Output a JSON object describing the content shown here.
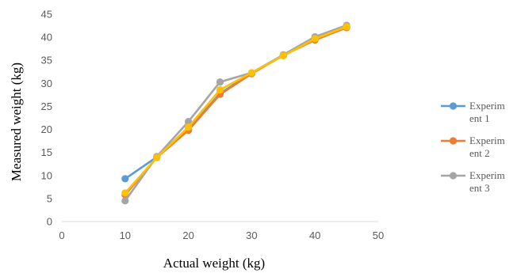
{
  "chart_data": {
    "type": "line",
    "title": "",
    "xlabel": "Actual  weight  (kg)",
    "ylabel": "Measured weight  (kg)",
    "xlim": [
      0,
      50
    ],
    "ylim": [
      0,
      45
    ],
    "xticks": [
      0,
      10,
      20,
      30,
      40,
      50
    ],
    "yticks": [
      0,
      5,
      10,
      15,
      20,
      25,
      30,
      35,
      40,
      45
    ],
    "grid": false,
    "legend": "right",
    "x": [
      10,
      15,
      20,
      25,
      30,
      35,
      40,
      45
    ],
    "series": [
      {
        "name": "Experim\nent 1",
        "legend_lines": [
          "Experim",
          "ent 1"
        ],
        "color": "#5B9BD5",
        "values": [
          9.3,
          14.0,
          20.0,
          27.8,
          32.2,
          36.0,
          39.6,
          42.2
        ]
      },
      {
        "name": "Experim\nent 2",
        "legend_lines": [
          "Experim",
          "ent 2"
        ],
        "color": "#ED7D31",
        "values": [
          5.8,
          13.9,
          19.8,
          27.6,
          32.1,
          36.1,
          39.4,
          42.1
        ]
      },
      {
        "name": "Experim\nent 3",
        "legend_lines": [
          "Experim",
          "ent 3"
        ],
        "color": "#A5A5A5",
        "values": [
          4.5,
          14.1,
          21.7,
          30.3,
          32.3,
          36.2,
          40.1,
          42.6
        ]
      },
      {
        "name": "",
        "legend_lines": [],
        "color": "#FFC000",
        "values": [
          6.2,
          13.9,
          20.5,
          28.6,
          32.3,
          36.0,
          39.7,
          42.3
        ]
      }
    ]
  }
}
